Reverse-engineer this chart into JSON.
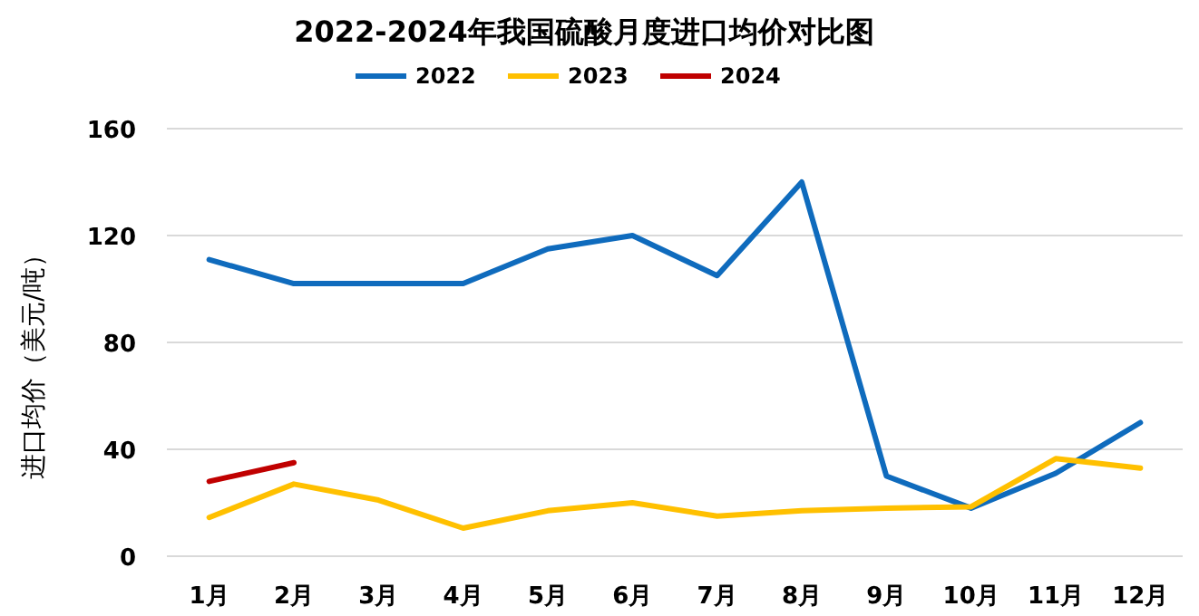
{
  "chart_data": {
    "type": "line",
    "title": "2022-2024年我国硫酸月度进口均价对比图",
    "ylabel": "进口均价（美元/吨）",
    "categories": [
      "1月",
      "2月",
      "3月",
      "4月",
      "5月",
      "6月",
      "7月",
      "8月",
      "9月",
      "10月",
      "11月",
      "12月"
    ],
    "series": [
      {
        "name": "2022",
        "color": "#0f6bbd",
        "values": [
          111,
          102,
          102,
          102,
          115,
          120,
          105,
          140,
          30,
          18,
          31,
          50
        ]
      },
      {
        "name": "2023",
        "color": "#ffc000",
        "values": [
          14.5,
          27,
          21,
          10.5,
          17,
          20,
          15,
          17,
          18,
          18.5,
          36.5,
          33
        ]
      },
      {
        "name": "2024",
        "color": "#c00000",
        "values": [
          28,
          35,
          null,
          null,
          null,
          null,
          null,
          null,
          null,
          null,
          null,
          null
        ]
      }
    ],
    "ylim": [
      0,
      160
    ],
    "yticks": [
      0,
      40,
      80,
      120,
      160
    ],
    "grid": "y",
    "legend": "top",
    "marker": "none",
    "line_style": "solid"
  }
}
